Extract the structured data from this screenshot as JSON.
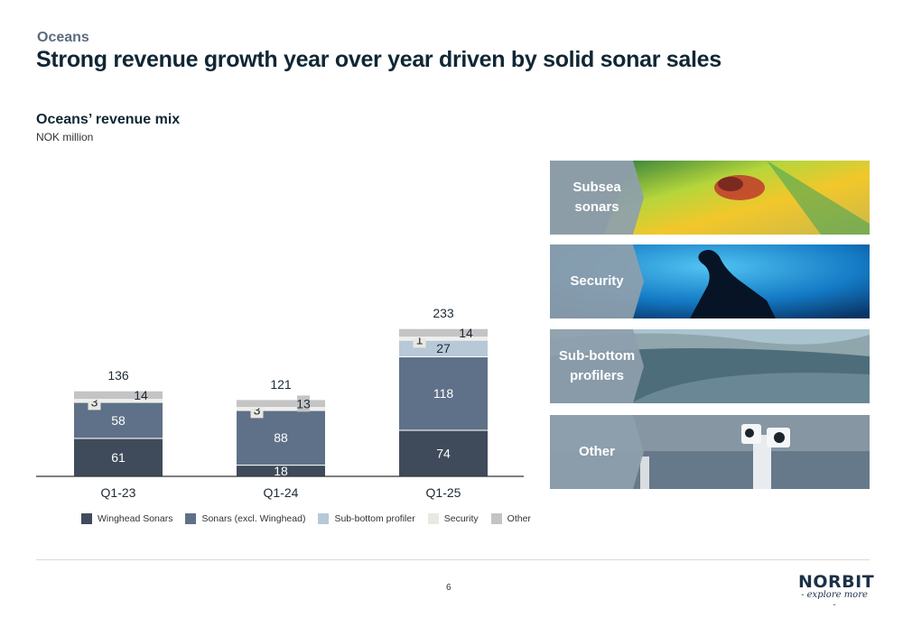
{
  "header": {
    "kicker": "Oceans",
    "title": "Strong revenue growth year over year driven by solid sonar sales"
  },
  "chart_header": {
    "title": "Oceans’ revenue mix",
    "unit": "NOK million"
  },
  "chart_data": {
    "type": "bar",
    "stacked": true,
    "categories": [
      "Q1-23",
      "Q1-24",
      "Q1-25"
    ],
    "totals": [
      136,
      121,
      233
    ],
    "series": [
      {
        "name": "Winghead Sonars",
        "color": "#3f4b5b",
        "values": [
          61,
          18,
          74
        ]
      },
      {
        "name": "Sonars (excl. Winghead)",
        "color": "#5f7188",
        "values": [
          58,
          88,
          118
        ]
      },
      {
        "name": "Sub-bottom profiler",
        "color": "#b7c9d6",
        "values": [
          0,
          0,
          27
        ]
      },
      {
        "name": "Security",
        "color": "#e9e8e1",
        "values": [
          3,
          3,
          1
        ]
      },
      {
        "name": "Other",
        "color": "#c4c4c4",
        "values": [
          14,
          13,
          14
        ]
      }
    ],
    "legend_position": "bottom",
    "grid": false
  },
  "panels": [
    {
      "label_line1": "Subsea",
      "label_line2": "sonars",
      "icon": "subsea-sonar-image"
    },
    {
      "label_line1": "Security",
      "label_line2": "",
      "icon": "diver-image"
    },
    {
      "label_line1": "Sub-bottom",
      "label_line2": "profilers",
      "icon": "seabed-image"
    },
    {
      "label_line1": "Other",
      "label_line2": "",
      "icon": "ship-equipment-image"
    }
  ],
  "footer": {
    "page_number": "6",
    "logo_text": "NORBIT",
    "logo_tagline": "- explore more -"
  }
}
